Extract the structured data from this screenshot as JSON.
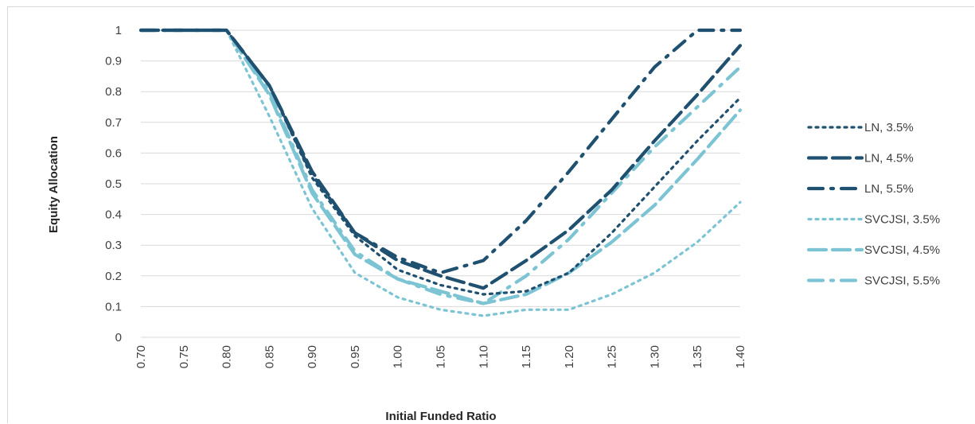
{
  "chart_data": {
    "type": "line",
    "title": "",
    "xlabel": "Initial Funded Ratio",
    "ylabel": "Equity Allocation",
    "xlim": [
      0.7,
      1.4
    ],
    "ylim": [
      0,
      1
    ],
    "x_ticks": [
      "0.70",
      "0.75",
      "0.80",
      "0.85",
      "0.90",
      "0.95",
      "1.00",
      "1.05",
      "1.10",
      "1.15",
      "1.20",
      "1.25",
      "1.30",
      "1.35",
      "1.40"
    ],
    "y_ticks": [
      "0",
      "0.1",
      "0.2",
      "0.3",
      "0.4",
      "0.5",
      "0.6",
      "0.7",
      "0.8",
      "0.9",
      "1"
    ],
    "grid": "horizontal",
    "legend_position": "right",
    "x": [
      0.7,
      0.75,
      0.8,
      0.85,
      0.9,
      0.95,
      1.0,
      1.05,
      1.1,
      1.15,
      1.2,
      1.25,
      1.3,
      1.35,
      1.4
    ],
    "series": [
      {
        "name": "LN, 3.5%",
        "color": "#1f5070",
        "dash": "dot",
        "values": [
          1,
          1,
          1,
          0.82,
          0.52,
          0.33,
          0.22,
          0.17,
          0.14,
          0.15,
          0.21,
          0.34,
          0.49,
          0.64,
          0.78
        ]
      },
      {
        "name": "LN, 4.5%",
        "color": "#1f5070",
        "dash": "dash",
        "values": [
          1,
          1,
          1,
          0.82,
          0.54,
          0.34,
          0.25,
          0.2,
          0.16,
          0.25,
          0.35,
          0.48,
          0.64,
          0.79,
          0.95
        ]
      },
      {
        "name": "LN, 5.5%",
        "color": "#1f5070",
        "dash": "dashdot",
        "values": [
          1,
          1,
          1,
          0.82,
          0.53,
          0.34,
          0.26,
          0.21,
          0.25,
          0.38,
          0.54,
          0.71,
          0.88,
          1.0,
          1.0
        ]
      },
      {
        "name": "SVCJSI, 3.5%",
        "color": "#7cc4d4",
        "dash": "dot",
        "values": [
          1,
          1,
          1,
          0.72,
          0.42,
          0.21,
          0.13,
          0.09,
          0.07,
          0.09,
          0.09,
          0.14,
          0.21,
          0.31,
          0.44
        ]
      },
      {
        "name": "SVCJSI, 4.5%",
        "color": "#7cc4d4",
        "dash": "dash",
        "values": [
          1,
          1,
          1,
          0.79,
          0.47,
          0.27,
          0.19,
          0.15,
          0.11,
          0.14,
          0.21,
          0.31,
          0.43,
          0.58,
          0.74
        ]
      },
      {
        "name": "SVCJSI, 5.5%",
        "color": "#7cc4d4",
        "dash": "dashdot",
        "values": [
          1,
          1,
          1,
          0.8,
          0.48,
          0.28,
          0.19,
          0.14,
          0.11,
          0.2,
          0.32,
          0.47,
          0.62,
          0.75,
          0.88
        ]
      }
    ]
  }
}
